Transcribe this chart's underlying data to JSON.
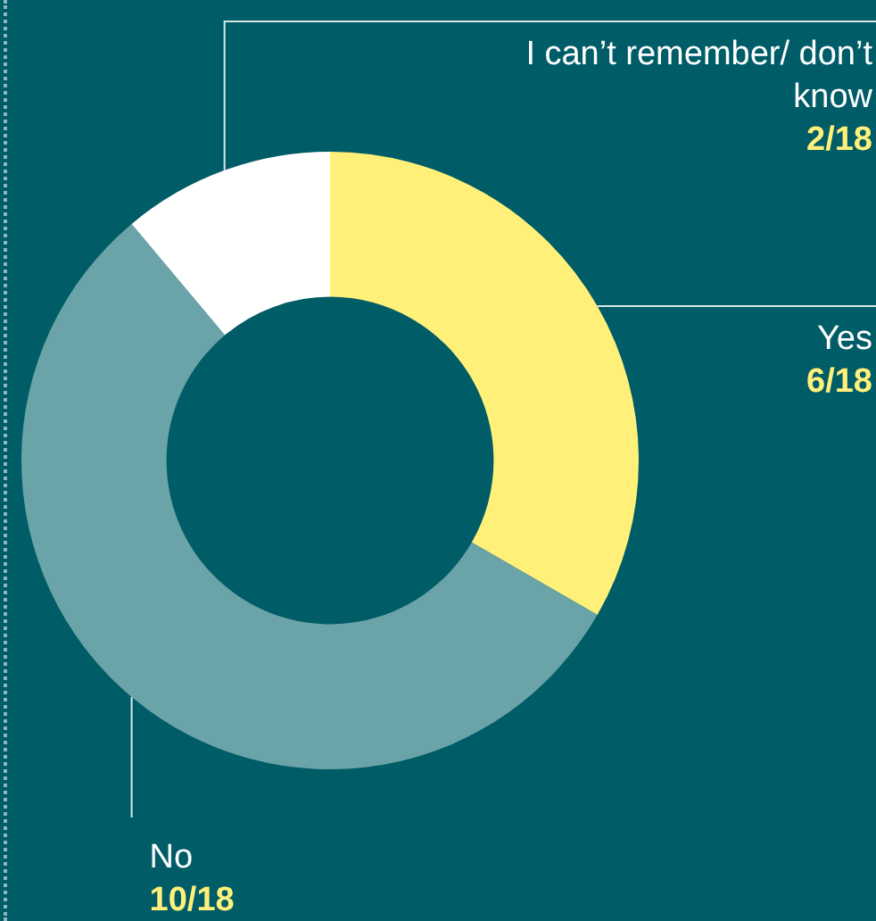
{
  "chart_data": {
    "type": "donut",
    "categories": [
      "Yes",
      "No",
      "I can’t remember/ don’t know"
    ],
    "values": [
      6,
      10,
      2
    ],
    "value_labels": [
      "6/18",
      "10/18",
      "2/18"
    ],
    "colors": [
      "#fff07a",
      "#6aa3a8",
      "#ffffff"
    ],
    "legend": false
  }
}
